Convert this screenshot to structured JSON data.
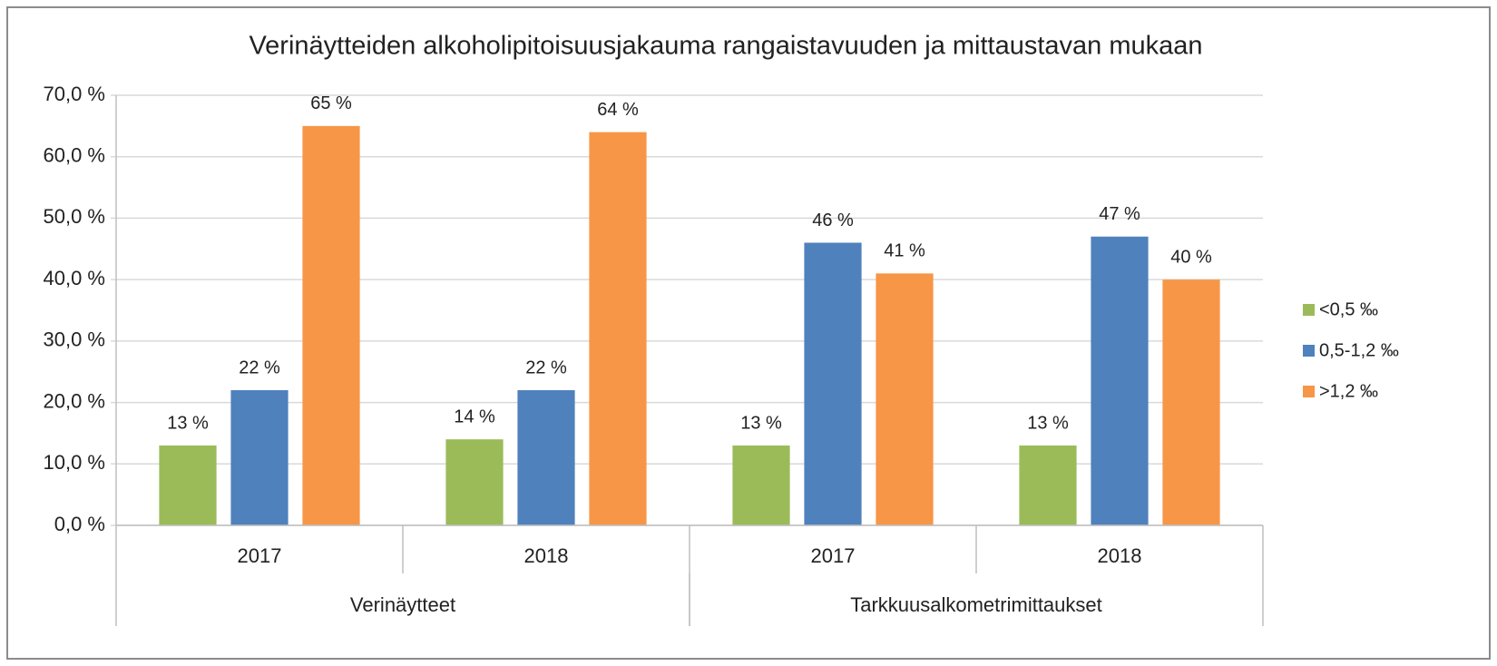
{
  "chart_data": {
    "type": "bar",
    "title": "Verinäytteiden alkoholipitoisuusjakauma rangaistavuuden ja mittaustavan mukaan",
    "category_groups": [
      {
        "name": "Verinäytteet",
        "categories": [
          "2017",
          "2018"
        ]
      },
      {
        "name": "Tarkkuusalkometrimittaukset",
        "categories": [
          "2017",
          "2018"
        ]
      }
    ],
    "series": [
      {
        "name": "<0,5 ‰",
        "color": "#9bbb59",
        "values": [
          13,
          14,
          13,
          13
        ],
        "value_labels": [
          "13 %",
          "14 %",
          "13 %",
          "13 %"
        ]
      },
      {
        "name": "0,5-1,2 ‰",
        "color": "#4f81bd",
        "values": [
          22,
          22,
          46,
          47
        ],
        "value_labels": [
          "22 %",
          "22 %",
          "46 %",
          "47 %"
        ]
      },
      {
        "name": ">1,2 ‰",
        "color": "#f79646",
        "values": [
          65,
          64,
          41,
          40
        ],
        "value_labels": [
          "65 %",
          "64 %",
          "41 %",
          "40 %"
        ]
      }
    ],
    "ylim": [
      0,
      70
    ],
    "yticks": [
      {
        "value": 0,
        "label": "0,0 %"
      },
      {
        "value": 10,
        "label": "10,0 %"
      },
      {
        "value": 20,
        "label": "20,0 %"
      },
      {
        "value": 30,
        "label": "30,0 %"
      },
      {
        "value": 40,
        "label": "40,0 %"
      },
      {
        "value": 50,
        "label": "50,0 %"
      },
      {
        "value": 60,
        "label": "60,0 %"
      },
      {
        "value": 70,
        "label": "70,0 %"
      }
    ],
    "grid": true,
    "legend": "right"
  }
}
